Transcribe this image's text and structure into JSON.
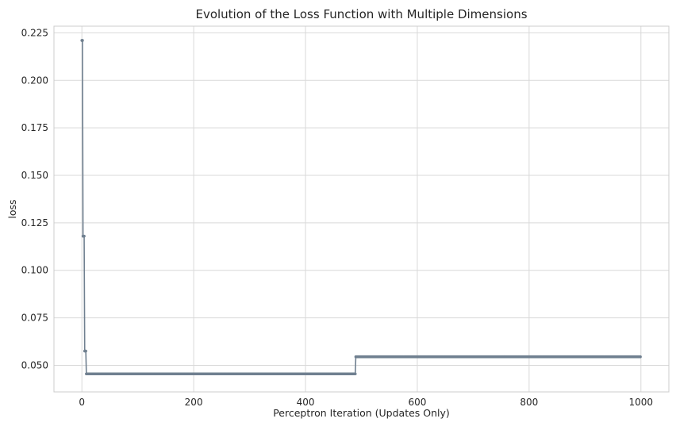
{
  "chart_data": {
    "type": "line",
    "title": "Evolution of the Loss Function with Multiple Dimensions",
    "xlabel": "Perceptron Iteration (Updates Only)",
    "ylabel": "loss",
    "xlim": [
      -50,
      1050
    ],
    "ylim": [
      0.036,
      0.2285
    ],
    "x_ticks": [
      0,
      200,
      400,
      600,
      800,
      1000
    ],
    "y_ticks": [
      0.05,
      0.075,
      0.1,
      0.125,
      0.15,
      0.175,
      0.2,
      0.225
    ],
    "x_tick_labels": [
      "0",
      "200",
      "400",
      "600",
      "800",
      "1000"
    ],
    "y_tick_labels": [
      "0.050",
      "0.075",
      "0.100",
      "0.125",
      "0.150",
      "0.175",
      "0.200",
      "0.225"
    ],
    "grid": true,
    "legend": null,
    "marker": "small circle",
    "series": [
      {
        "color": "#708090",
        "segments": [
          {
            "x": [
              0,
              1
            ],
            "y": [
              0.221,
              0.221
            ]
          },
          {
            "x": [
              2,
              4
            ],
            "y": [
              0.118,
              0.118
            ]
          },
          {
            "x": [
              5,
              7
            ],
            "y": [
              0.0575,
              0.0575
            ]
          },
          {
            "x": [
              8,
              489
            ],
            "y": [
              0.0455,
              0.0455
            ]
          },
          {
            "x": [
              490,
              999
            ],
            "y": [
              0.0545,
              0.0545
            ]
          }
        ]
      }
    ]
  }
}
